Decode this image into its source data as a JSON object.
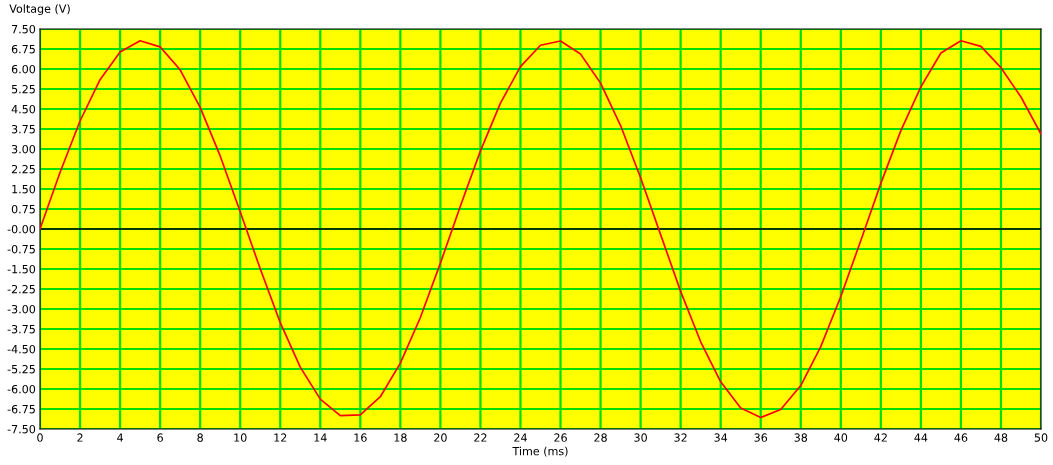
{
  "chart_data": {
    "type": "line",
    "xlabel": "Time (ms)",
    "ylabel": "Voltage (V)",
    "x": [
      0,
      1,
      2,
      3,
      4,
      5,
      6,
      7,
      8,
      9,
      10,
      11,
      12,
      13,
      14,
      15,
      16,
      17,
      18,
      19,
      20,
      21,
      22,
      23,
      24,
      25,
      26,
      27,
      28,
      29,
      30,
      31,
      32,
      33,
      34,
      35,
      36,
      37,
      38,
      39,
      40,
      41,
      42,
      43,
      44,
      45,
      46,
      47,
      48,
      49,
      50
    ],
    "series": [
      {
        "color": "#ff0000",
        "values": [
          0,
          2.12,
          4.05,
          5.6,
          6.64,
          7.06,
          6.83,
          5.97,
          4.56,
          2.74,
          0.65,
          -1.49,
          -3.51,
          -5.18,
          -6.38,
          -7.0,
          -6.97,
          -6.29,
          -5.03,
          -3.32,
          -1.28,
          0.86,
          2.93,
          4.72,
          6.09,
          6.89,
          7.05,
          6.56,
          5.47,
          3.88,
          1.92,
          -0.21,
          -2.34,
          -4.23,
          -5.73,
          -6.71,
          -7.07,
          -6.77,
          -5.87,
          -4.41,
          -2.53,
          -0.43,
          1.71,
          3.69,
          5.33,
          6.6,
          7.06,
          6.85,
          6.05,
          4.95,
          3.56
        ]
      }
    ],
    "xlim": [
      0,
      50
    ],
    "xticks": [
      0,
      2,
      4,
      6,
      8,
      10,
      12,
      14,
      16,
      18,
      20,
      22,
      24,
      26,
      28,
      30,
      32,
      34,
      36,
      38,
      40,
      42,
      44,
      46,
      48,
      50
    ],
    "ylim": [
      -7.5,
      7.5
    ],
    "yticks": [
      {
        "value": 7.5,
        "label": "7.50"
      },
      {
        "value": 6.75,
        "label": "6.75"
      },
      {
        "value": 6,
        "label": "6.00"
      },
      {
        "value": 5.25,
        "label": "5.25"
      },
      {
        "value": 4.5,
        "label": "4.50"
      },
      {
        "value": 3.75,
        "label": "3.75"
      },
      {
        "value": 3,
        "label": "3.00"
      },
      {
        "value": 2.25,
        "label": "2.25"
      },
      {
        "value": 1.5,
        "label": "1.50"
      },
      {
        "value": 0.75,
        "label": "0.75"
      },
      {
        "value": 0,
        "label": "-0.00"
      },
      {
        "value": -0.75,
        "label": "-0.75"
      },
      {
        "value": -1.5,
        "label": "-1.50"
      },
      {
        "value": -2.25,
        "label": "-2.25"
      },
      {
        "value": -3,
        "label": "-3.00"
      },
      {
        "value": -3.75,
        "label": "-3.75"
      },
      {
        "value": -4.5,
        "label": "-4.50"
      },
      {
        "value": -5.25,
        "label": "-5.25"
      },
      {
        "value": -6,
        "label": "-6.00"
      },
      {
        "value": -6.75,
        "label": "-6.75"
      },
      {
        "value": -7.5,
        "label": "-7.50"
      }
    ],
    "ref_lines": [
      {
        "axis": "y",
        "value": 0,
        "color": "#000000"
      }
    ],
    "grid": true,
    "legend": false
  }
}
